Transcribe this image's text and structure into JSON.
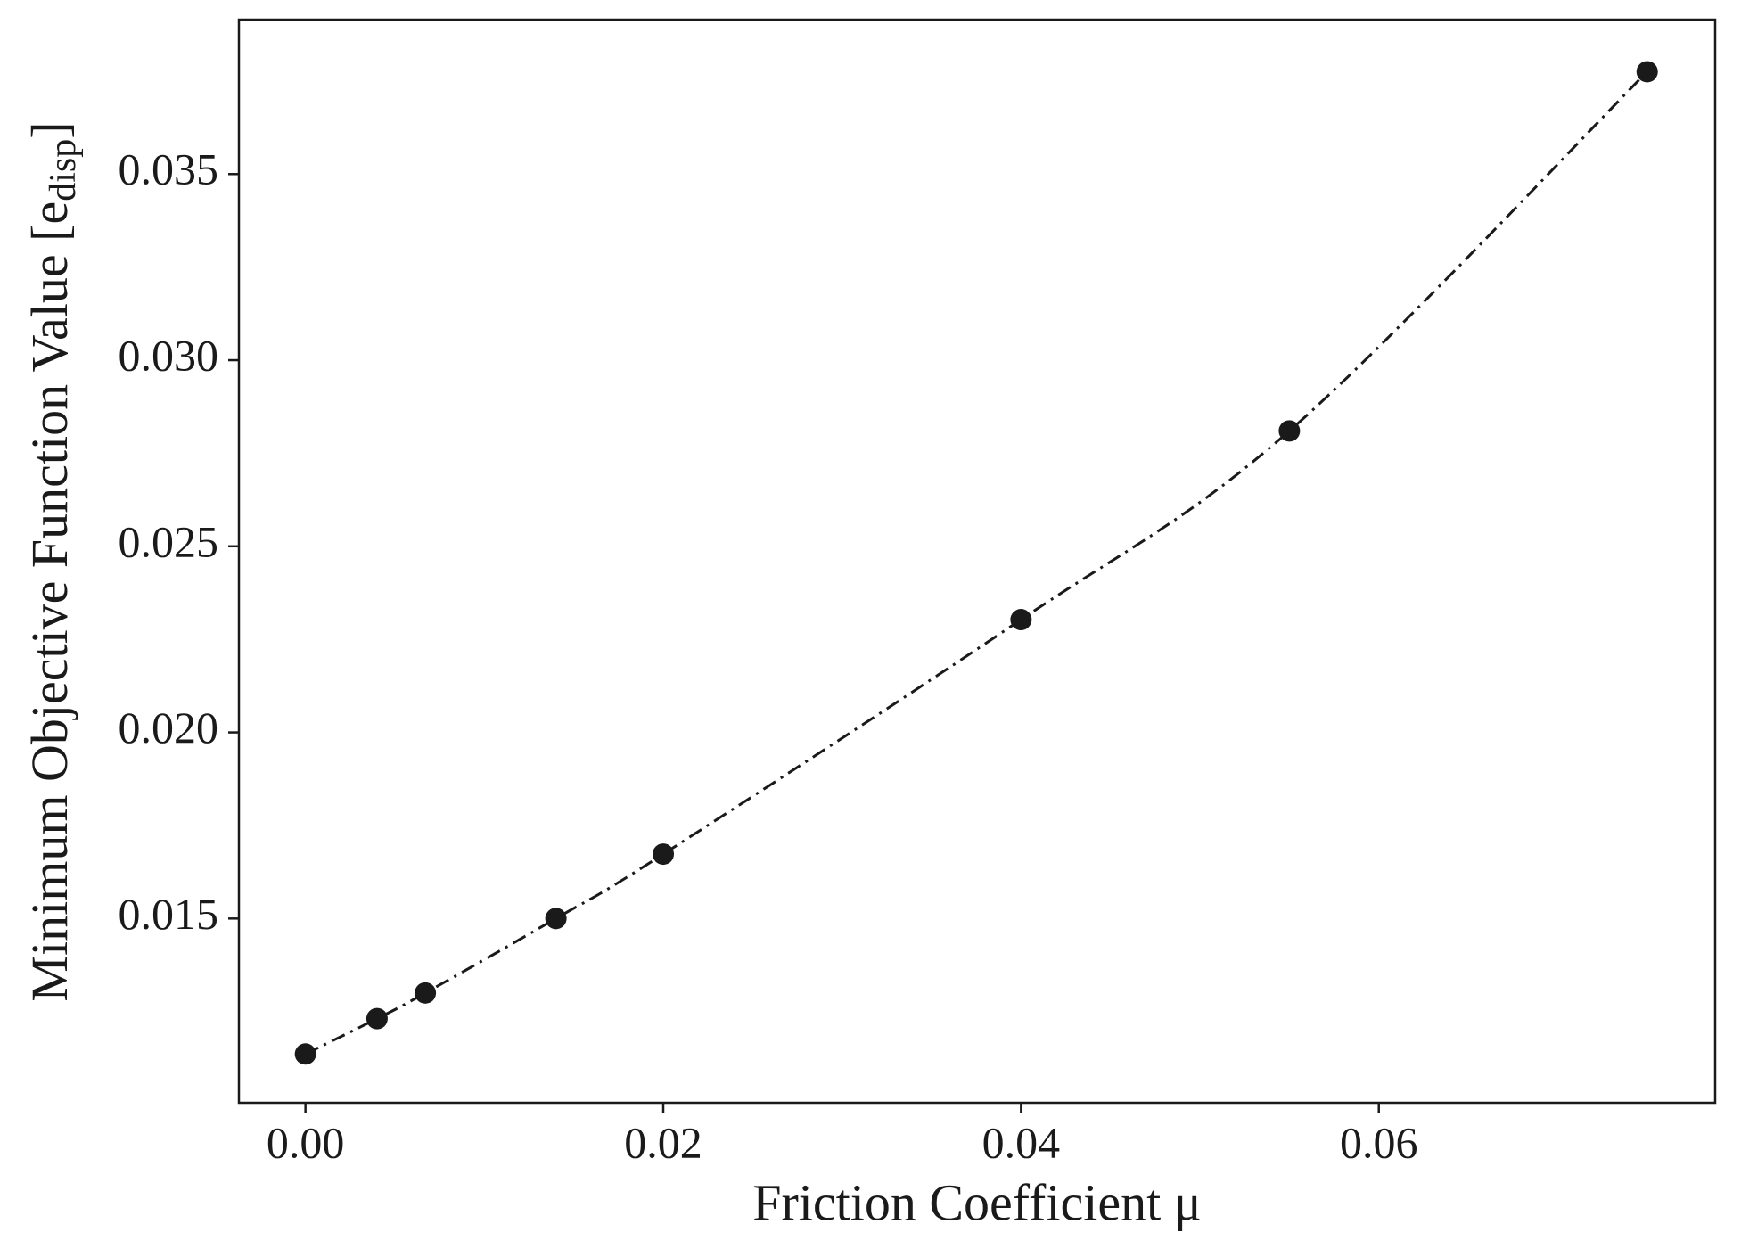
{
  "chart_data": {
    "type": "line",
    "xlabel": "Friction Coefficient μ",
    "ylabel": {
      "text": "Minimum Objective Function Value [e",
      "subscript": "disp",
      "suffix": "]"
    },
    "x": [
      0,
      0.004,
      0.0067,
      0.014,
      0.02,
      0.04,
      0.055,
      0.075
    ],
    "series": [
      {
        "color": "#1a1a1a",
        "values": [
          0.01136,
          0.01231,
          0.013,
          0.015,
          0.01673,
          0.02303,
          0.0281,
          0.03775
        ]
      }
    ],
    "xlim": [
      -0.00372,
      0.0788
    ],
    "ylim": [
      0.01005,
      0.03915
    ],
    "xticks": [
      {
        "value": 0,
        "label": "0.00"
      },
      {
        "value": 0.02,
        "label": "0.02"
      },
      {
        "value": 0.04,
        "label": "0.04"
      },
      {
        "value": 0.06,
        "label": "0.06"
      }
    ],
    "yticks": [
      {
        "value": 0.015,
        "label": "0.015"
      },
      {
        "value": 0.02,
        "label": "0.020"
      },
      {
        "value": 0.025,
        "label": "0.025"
      },
      {
        "value": 0.03,
        "label": "0.030"
      },
      {
        "value": 0.035,
        "label": "0.035"
      }
    ],
    "grid": false
  }
}
